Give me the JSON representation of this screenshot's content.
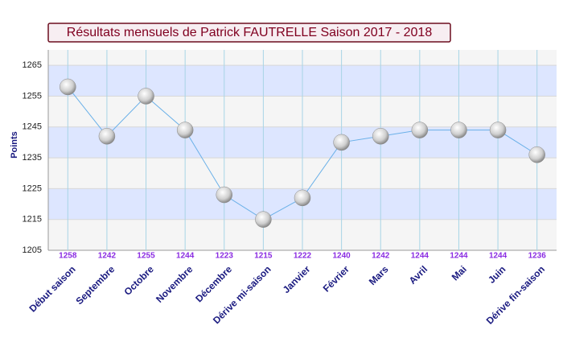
{
  "chart_data": {
    "type": "line",
    "title": "Résultats mensuels de Patrick FAUTRELLE Saison 2017 - 2018",
    "y_label": "Points",
    "categories": [
      "Début saison",
      "Septembre",
      "Octobre",
      "Novembre",
      "Décembre",
      "Dérive mi-saison",
      "Janvier",
      "Février",
      "Mars",
      "Avril",
      "Mai",
      "Juin",
      "Dérive fin-saison"
    ],
    "series": [
      {
        "name": "Points",
        "color": "#6ab0e8",
        "values": [
          1258,
          1242,
          1255,
          1244,
          1223,
          1215,
          1222,
          1240,
          1242,
          1244,
          1244,
          1244,
          1236
        ]
      }
    ],
    "ylim": [
      1205,
      1270
    ],
    "yticks": [
      1205,
      1215,
      1225,
      1235,
      1245,
      1255,
      1265
    ],
    "grid": true
  }
}
